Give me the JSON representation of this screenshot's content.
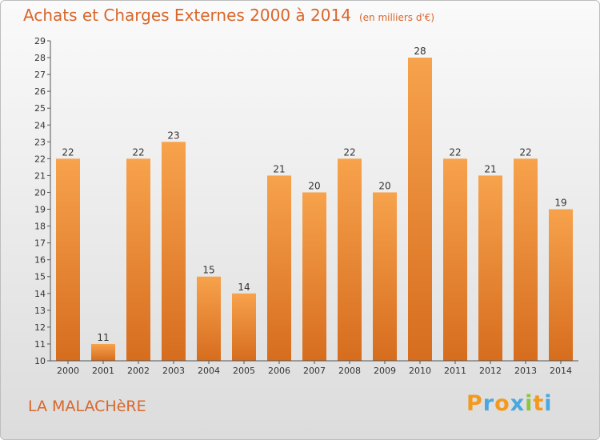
{
  "header": {
    "title": "Achats et Charges Externes 2000 à 2014",
    "unit": "(en milliers d'€)"
  },
  "footer": {
    "place": "LA MALACHèRE",
    "logo": [
      "P",
      "r",
      "o",
      "x",
      "i",
      "t",
      "i"
    ]
  },
  "colors": {
    "accent": "#d9662a",
    "bar_top": "#f7a24c",
    "bar_bottom": "#d66d1e",
    "logo": [
      "#f39a1e",
      "#4aa7df",
      "#f39a1e",
      "#4aa7df",
      "#8cc63f",
      "#f39a1e",
      "#4aa7df"
    ]
  },
  "chart_data": {
    "type": "bar",
    "categories": [
      "2000",
      "2001",
      "2002",
      "2003",
      "2004",
      "2005",
      "2006",
      "2007",
      "2008",
      "2009",
      "2010",
      "2011",
      "2012",
      "2013",
      "2014"
    ],
    "values": [
      22,
      11,
      22,
      23,
      15,
      14,
      21,
      20,
      22,
      20,
      28,
      22,
      21,
      22,
      19
    ],
    "title": "Achats et Charges Externes 2000 à 2014",
    "ylim": [
      10,
      29
    ],
    "yticks": [
      10,
      11,
      12,
      13,
      14,
      15,
      16,
      17,
      18,
      19,
      20,
      21,
      22,
      23,
      24,
      25,
      26,
      27,
      28,
      29
    ],
    "grid": false
  }
}
